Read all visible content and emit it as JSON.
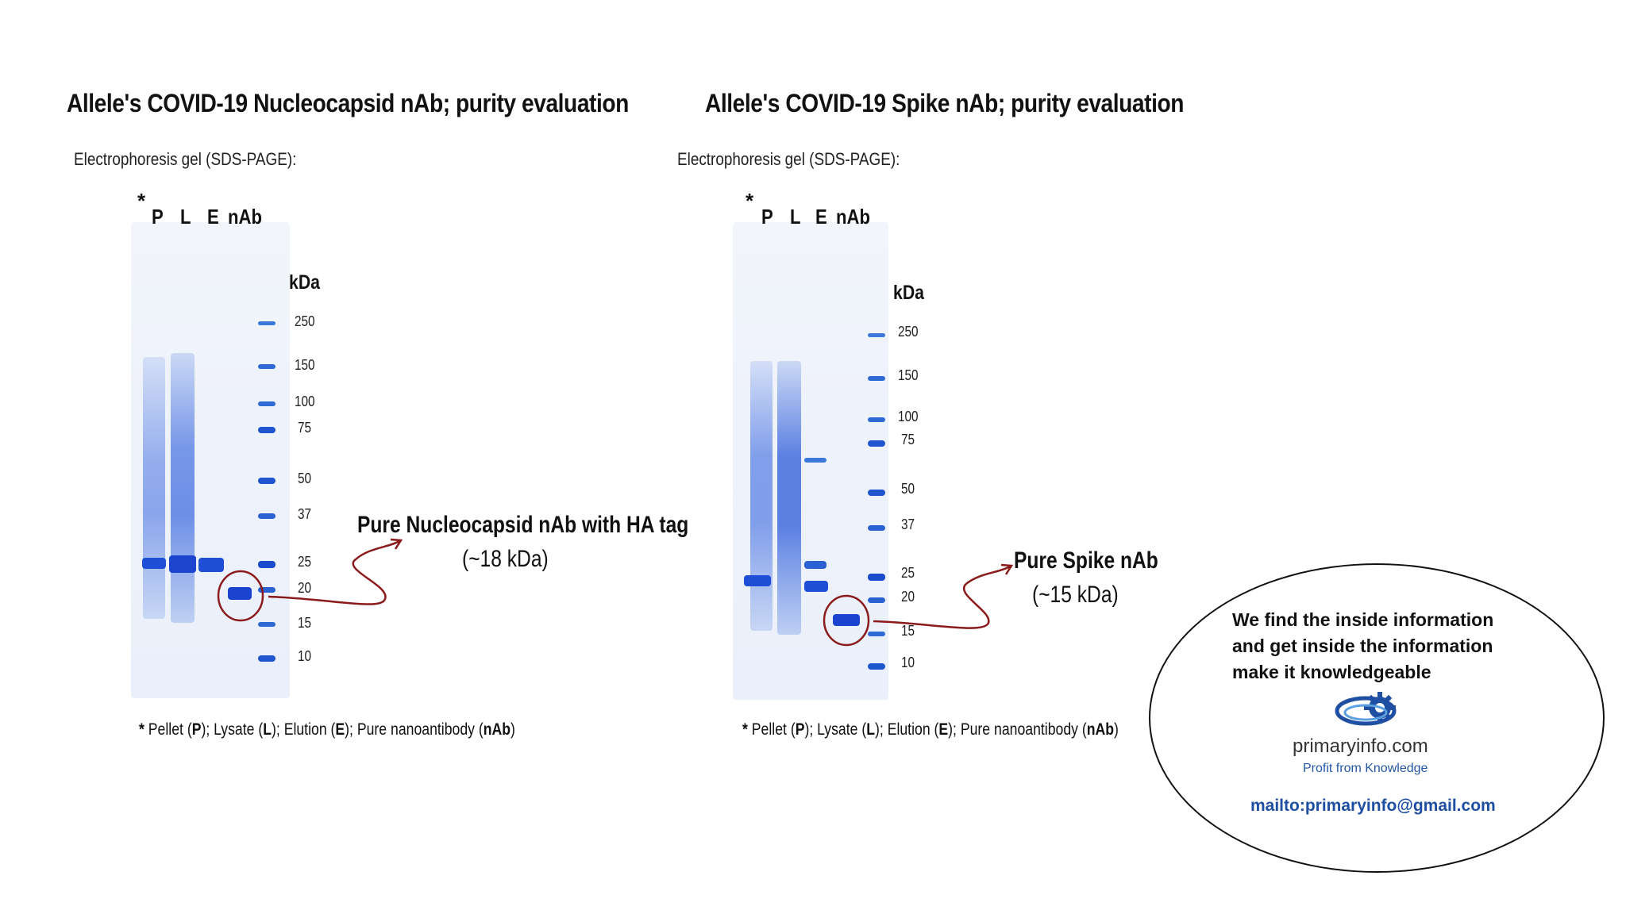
{
  "left_panel": {
    "title": "Allele's COVID-19 Nucleocapsid nAb; purity evaluation",
    "subtitle": "Electrophoresis gel (SDS-PAGE):",
    "star": "*",
    "lanes": [
      "P",
      "L",
      "E",
      "nAb"
    ],
    "kda_label": "kDa",
    "ladder": [
      "250",
      "150",
      "100",
      "75",
      "50",
      "37",
      "25",
      "20",
      "15",
      "10"
    ],
    "annotation_title": "Pure Nucleocapsid nAb with HA tag",
    "annotation_sub": "(~18 kDa)",
    "footnote": {
      "star": "*",
      "p_pre": "Pellet (",
      "p": "P",
      "l_pre": "); Lysate (",
      "l": "L",
      "e_pre": "); Elution (",
      "e": "E",
      "n_pre": "); Pure nanoantibody (",
      "n": "nAb",
      "end": ")"
    }
  },
  "right_panel": {
    "title": "Allele's COVID-19 Spike nAb; purity evaluation",
    "subtitle": "Electrophoresis gel (SDS-PAGE):",
    "star": "*",
    "lanes": [
      "P",
      "L",
      "E",
      "nAb"
    ],
    "kda_label": "kDa",
    "ladder": [
      "250",
      "150",
      "100",
      "75",
      "50",
      "37",
      "25",
      "20",
      "15",
      "10"
    ],
    "annotation_title": "Pure Spike nAb",
    "annotation_sub": "(~15 kDa)",
    "footnote": {
      "star": "*",
      "p_pre": "Pellet (",
      "p": "P",
      "l_pre": "); Lysate (",
      "l": "L",
      "e_pre": "); Elution (",
      "e": "E",
      "n_pre": "); Pure nanoantibody (",
      "n": "nAb",
      "end": ")"
    }
  },
  "promo": {
    "line1": "We find the inside information",
    "line2": "and get inside the information",
    "line3": "make it knowledgeable",
    "brand": "primaryinfo.com",
    "tagline": "Profit from Knowledge",
    "email": "mailto:primaryinfo@gmail.com"
  },
  "colors": {
    "band": "#1f4fd6",
    "arrow": "#8b1a1a"
  }
}
